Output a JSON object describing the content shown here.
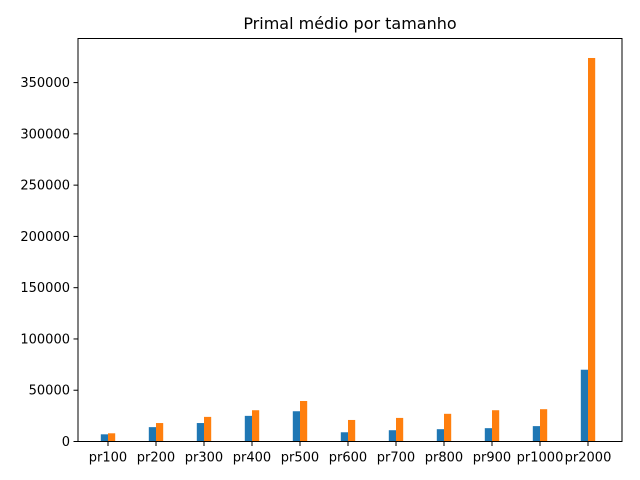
{
  "chart_data": {
    "type": "bar",
    "title": "Primal médio por tamanho",
    "xlabel": "",
    "ylabel": "",
    "categories": [
      "pr100",
      "pr200",
      "pr300",
      "pr400",
      "pr500",
      "pr600",
      "pr700",
      "pr800",
      "pr900",
      "pr1000",
      "pr2000"
    ],
    "series": [
      {
        "values": [
          7000,
          14000,
          18000,
          25000,
          29500,
          9000,
          11000,
          12000,
          13000,
          15000,
          70000
        ],
        "color": "#1f77b4"
      },
      {
        "values": [
          8000,
          18000,
          24000,
          30500,
          39500,
          21000,
          23000,
          27000,
          30500,
          31500,
          374000
        ],
        "color": "#ff7f0e"
      }
    ],
    "ylim": [
      0,
      393000
    ],
    "yticks": [
      0,
      50000,
      100000,
      150000,
      200000,
      250000,
      300000,
      350000
    ],
    "grid": false,
    "legend": "none"
  }
}
